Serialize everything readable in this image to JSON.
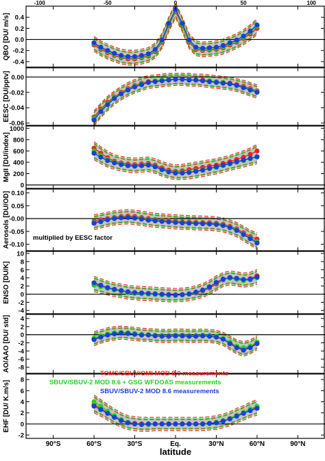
{
  "figure": {
    "top_axis_ticks": [
      "-100",
      "-50",
      "0",
      "50",
      "100"
    ],
    "bottom_axis_ticks": [
      "90°S",
      "60°S",
      "30°S",
      "Eq.",
      "30°N",
      "60°N",
      "90°N"
    ],
    "xlabel": "latitude",
    "annotation": "multiplied by EESC factor",
    "legend": [
      {
        "text": "TOMS/SBUV/OMI  MOD 8.0  measurements",
        "color": "#e8261c"
      },
      {
        "text": "SBUV/SBUV-2  MOD 8.6  + GSG  WFDOAS  measurements",
        "color": "#22d422"
      },
      {
        "text": "SBUV/SBUV-2  MOD 8.6  measurements",
        "color": "#1a3fd6"
      }
    ],
    "colors": {
      "band": "#c4c4c4",
      "red": "#e8261c",
      "green": "#22d422",
      "blue": "#1a3fd6",
      "olive": "#8a7a1a"
    }
  },
  "chart_data": [
    {
      "type": "line",
      "ylabel": "QBO  [DU/ m/s]",
      "yticks": [
        "0.4",
        "0.2",
        "0.0",
        "-0.2",
        "-0.4"
      ],
      "ylim": [
        -0.5,
        0.6
      ],
      "x": [
        -60,
        -55,
        -50,
        -45,
        -40,
        -35,
        -30,
        -25,
        -20,
        -15,
        -10,
        -5,
        0,
        5,
        10,
        15,
        20,
        25,
        30,
        35,
        40,
        45,
        50,
        55,
        60
      ],
      "series": [
        {
          "values": [
            -0.1,
            -0.18,
            -0.24,
            -0.29,
            -0.33,
            -0.35,
            -0.35,
            -0.33,
            -0.3,
            -0.22,
            -0.05,
            0.25,
            0.5,
            0.25,
            -0.05,
            -0.18,
            -0.2,
            -0.19,
            -0.18,
            -0.15,
            -0.1,
            -0.05,
            0.02,
            0.1,
            0.2
          ]
        },
        {
          "values": [
            -0.08,
            -0.16,
            -0.22,
            -0.27,
            -0.31,
            -0.33,
            -0.33,
            -0.31,
            -0.28,
            -0.2,
            -0.03,
            0.27,
            0.52,
            0.27,
            -0.03,
            -0.16,
            -0.18,
            -0.17,
            -0.16,
            -0.13,
            -0.08,
            -0.03,
            0.04,
            0.13,
            0.24
          ]
        },
        {
          "values": [
            -0.06,
            -0.14,
            -0.2,
            -0.25,
            -0.29,
            -0.31,
            -0.31,
            -0.29,
            -0.26,
            -0.18,
            -0.01,
            0.29,
            0.54,
            0.29,
            -0.01,
            -0.14,
            -0.16,
            -0.15,
            -0.14,
            -0.11,
            -0.06,
            -0.01,
            0.06,
            0.15,
            0.26
          ]
        }
      ]
    },
    {
      "type": "line",
      "ylabel": "EESC  [DU/pptv]",
      "yticks": [
        "0.00",
        "-0.02",
        "-0.04",
        "-0.06"
      ],
      "ylim": [
        -0.063,
        0.012
      ],
      "x": [
        -60,
        -55,
        -50,
        -45,
        -40,
        -35,
        -30,
        -25,
        -20,
        -15,
        -10,
        -5,
        0,
        5,
        10,
        15,
        20,
        25,
        30,
        35,
        40,
        45,
        50,
        55,
        60
      ],
      "series": [
        {
          "values": [
            -0.052,
            -0.042,
            -0.033,
            -0.026,
            -0.02,
            -0.015,
            -0.011,
            -0.008,
            -0.006,
            -0.005,
            -0.004,
            -0.003,
            -0.003,
            -0.003,
            -0.003,
            -0.004,
            -0.004,
            -0.005,
            -0.006,
            -0.007,
            -0.008,
            -0.01,
            -0.012,
            -0.015,
            -0.018
          ]
        },
        {
          "values": [
            -0.054,
            -0.044,
            -0.035,
            -0.027,
            -0.021,
            -0.016,
            -0.012,
            -0.009,
            -0.007,
            -0.005,
            -0.004,
            -0.003,
            -0.003,
            -0.003,
            -0.003,
            -0.004,
            -0.005,
            -0.005,
            -0.006,
            -0.007,
            -0.009,
            -0.011,
            -0.013,
            -0.016,
            -0.019
          ]
        },
        {
          "values": [
            -0.056,
            -0.045,
            -0.036,
            -0.028,
            -0.022,
            -0.017,
            -0.013,
            -0.01,
            -0.007,
            -0.006,
            -0.005,
            -0.004,
            -0.003,
            -0.003,
            -0.004,
            -0.004,
            -0.005,
            -0.006,
            -0.007,
            -0.008,
            -0.009,
            -0.011,
            -0.014,
            -0.017,
            -0.02
          ]
        }
      ]
    },
    {
      "type": "line",
      "ylabel": "MgII  [DU/index]",
      "yticks": [
        "1000",
        "800",
        "600",
        "400",
        "200",
        "0"
      ],
      "ylim": [
        -60,
        1040
      ],
      "x": [
        -60,
        -55,
        -50,
        -45,
        -40,
        -35,
        -30,
        -25,
        -20,
        -15,
        -10,
        -5,
        0,
        5,
        10,
        15,
        20,
        25,
        30,
        35,
        40,
        45,
        50,
        55,
        60
      ],
      "series": [
        {
          "values": [
            650,
            560,
            480,
            420,
            390,
            370,
            360,
            370,
            380,
            350,
            300,
            260,
            240,
            250,
            270,
            290,
            310,
            330,
            350,
            380,
            410,
            450,
            490,
            540,
            600
          ]
        },
        {
          "values": [
            600,
            520,
            450,
            400,
            370,
            350,
            340,
            350,
            360,
            330,
            280,
            240,
            220,
            220,
            230,
            250,
            270,
            290,
            310,
            340,
            370,
            400,
            430,
            460,
            490
          ]
        },
        {
          "values": [
            560,
            490,
            430,
            390,
            360,
            340,
            330,
            340,
            350,
            320,
            270,
            230,
            210,
            210,
            220,
            240,
            260,
            290,
            320,
            350,
            380,
            410,
            440,
            470,
            500
          ]
        }
      ]
    },
    {
      "type": "line",
      "ylabel": "Aerosols [DU/OD]",
      "yticks": [
        "0.10",
        "0.05",
        "-0.00",
        "-0.05",
        "-0.10"
      ],
      "ylim": [
        -0.125,
        0.115
      ],
      "x": [
        -60,
        -55,
        -50,
        -45,
        -40,
        -35,
        -30,
        -25,
        -20,
        -15,
        -10,
        -5,
        0,
        5,
        10,
        15,
        20,
        25,
        30,
        35,
        40,
        45,
        50,
        55,
        60
      ],
      "series": [
        {
          "values": [
            -0.01,
            -0.005,
            0.0,
            0.005,
            0.008,
            0.01,
            0.008,
            0.004,
            0.0,
            -0.004,
            -0.006,
            -0.008,
            -0.01,
            -0.012,
            -0.013,
            -0.014,
            -0.015,
            -0.016,
            -0.018,
            -0.022,
            -0.03,
            -0.04,
            -0.055,
            -0.07,
            -0.08
          ]
        },
        {
          "values": [
            -0.015,
            -0.01,
            -0.003,
            0.002,
            0.005,
            0.006,
            0.004,
            0.0,
            -0.004,
            -0.007,
            -0.009,
            -0.011,
            -0.013,
            -0.015,
            -0.016,
            -0.017,
            -0.018,
            -0.019,
            -0.021,
            -0.025,
            -0.033,
            -0.044,
            -0.06,
            -0.075,
            -0.09
          ]
        },
        {
          "values": [
            -0.018,
            -0.012,
            -0.005,
            0.0,
            0.003,
            0.004,
            0.002,
            -0.002,
            -0.006,
            -0.009,
            -0.011,
            -0.013,
            -0.015,
            -0.017,
            -0.018,
            -0.019,
            -0.02,
            -0.021,
            -0.023,
            -0.027,
            -0.035,
            -0.046,
            -0.062,
            -0.078,
            -0.095
          ]
        }
      ]
    },
    {
      "type": "line",
      "ylabel": "ENSO  [DU/K]",
      "yticks": [
        "10",
        "8",
        "6",
        "4",
        "2",
        "0",
        "-2",
        "-4"
      ],
      "ylim": [
        -4.8,
        10.5
      ],
      "x": [
        -60,
        -55,
        -50,
        -45,
        -40,
        -35,
        -30,
        -25,
        -20,
        -15,
        -10,
        -5,
        0,
        5,
        10,
        15,
        20,
        25,
        30,
        35,
        40,
        45,
        50,
        55,
        60
      ],
      "series": [
        {
          "values": [
            2.5,
            2.0,
            1.5,
            1.1,
            0.8,
            0.5,
            0.3,
            0.2,
            0.1,
            0.0,
            -0.1,
            -0.2,
            -0.3,
            -0.2,
            0.0,
            0.3,
            0.8,
            1.5,
            2.5,
            3.5,
            4.0,
            3.8,
            3.5,
            3.8,
            4.5
          ]
        },
        {
          "values": [
            2.2,
            1.8,
            1.4,
            1.0,
            0.7,
            0.4,
            0.2,
            0.1,
            0.0,
            -0.1,
            -0.2,
            -0.3,
            -0.3,
            -0.2,
            0.0,
            0.4,
            0.9,
            1.7,
            2.8,
            3.6,
            3.9,
            3.6,
            3.3,
            3.5,
            4.0
          ]
        },
        {
          "values": [
            2.8,
            2.2,
            1.6,
            1.2,
            0.9,
            0.6,
            0.4,
            0.3,
            0.2,
            0.1,
            0.0,
            -0.1,
            -0.2,
            -0.1,
            0.1,
            0.5,
            1.0,
            1.8,
            2.9,
            3.7,
            4.1,
            3.9,
            3.6,
            3.7,
            4.2
          ]
        }
      ]
    },
    {
      "type": "line",
      "ylabel": "AO/AAO [DU/ std]",
      "yticks": [
        "4",
        "2",
        "0",
        "-2",
        "-4",
        "-6",
        "-8"
      ],
      "ylim": [
        -9.5,
        5
      ],
      "x": [
        -60,
        -55,
        -50,
        -45,
        -40,
        -35,
        -30,
        -25,
        -20,
        -15,
        -10,
        -5,
        0,
        5,
        10,
        15,
        20,
        25,
        30,
        35,
        40,
        45,
        50,
        55,
        60
      ],
      "series": [
        {
          "values": [
            -1.0,
            -0.5,
            0.0,
            0.3,
            0.5,
            0.4,
            0.2,
            0.0,
            0.0,
            -0.2,
            -0.3,
            -0.3,
            -0.2,
            -0.2,
            -0.3,
            -0.3,
            -0.2,
            -0.3,
            -0.5,
            -1.0,
            -2.0,
            -3.0,
            -3.5,
            -3.0,
            -2.0
          ]
        },
        {
          "values": [
            -0.8,
            -0.3,
            0.2,
            0.5,
            0.6,
            0.5,
            0.3,
            0.1,
            0.0,
            -0.1,
            -0.2,
            -0.2,
            -0.1,
            -0.1,
            -0.2,
            -0.2,
            -0.1,
            -0.2,
            -0.4,
            -0.9,
            -1.8,
            -2.8,
            -3.2,
            -2.8,
            -1.8
          ]
        },
        {
          "values": [
            -1.2,
            -0.6,
            -0.1,
            0.2,
            0.4,
            0.3,
            0.1,
            -0.1,
            -0.1,
            -0.3,
            -0.4,
            -0.4,
            -0.3,
            -0.3,
            -0.4,
            -0.4,
            -0.3,
            -0.4,
            -0.6,
            -1.1,
            -2.2,
            -3.2,
            -3.8,
            -3.2,
            -2.2
          ]
        }
      ]
    },
    {
      "type": "line",
      "ylabel": "EHF  [DU/ K.m/s]",
      "yticks": [
        "8",
        "6",
        "4",
        "2",
        "0",
        "-2"
      ],
      "ylim": [
        -2.6,
        9
      ],
      "x": [
        -60,
        -55,
        -50,
        -45,
        -40,
        -35,
        -30,
        -25,
        -20,
        -15,
        -10,
        -5,
        0,
        5,
        10,
        15,
        20,
        25,
        30,
        35,
        40,
        45,
        50,
        55,
        60
      ],
      "series": [
        {
          "values": [
            3.5,
            2.8,
            2.0,
            1.3,
            0.7,
            0.3,
            0.1,
            0.0,
            0.0,
            0.0,
            0.0,
            0.0,
            0.0,
            0.0,
            0.0,
            0.0,
            0.0,
            0.1,
            0.3,
            0.6,
            1.0,
            1.5,
            2.0,
            2.5,
            3.0
          ]
        },
        {
          "values": [
            4.0,
            3.2,
            2.3,
            1.5,
            0.8,
            0.3,
            0.0,
            -0.1,
            -0.1,
            0.0,
            0.0,
            0.0,
            0.0,
            0.0,
            0.0,
            0.0,
            0.0,
            0.1,
            0.3,
            0.6,
            1.0,
            1.6,
            2.1,
            2.7,
            3.2
          ]
        },
        {
          "values": [
            3.2,
            2.6,
            1.9,
            1.2,
            0.6,
            0.2,
            0.0,
            -0.1,
            0.0,
            0.0,
            0.0,
            0.0,
            0.0,
            0.0,
            0.0,
            0.0,
            0.0,
            0.1,
            0.2,
            0.5,
            0.9,
            1.4,
            1.9,
            2.4,
            2.8
          ]
        }
      ]
    }
  ]
}
